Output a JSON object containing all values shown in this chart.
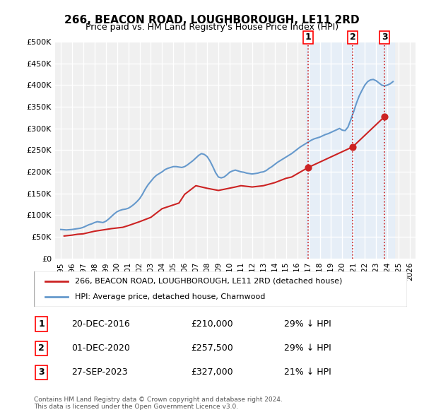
{
  "title": "266, BEACON ROAD, LOUGHBOROUGH, LE11 2RD",
  "subtitle": "Price paid vs. HM Land Registry's House Price Index (HPI)",
  "ylabel": "",
  "ylim": [
    0,
    500000
  ],
  "yticks": [
    0,
    50000,
    100000,
    150000,
    200000,
    250000,
    300000,
    350000,
    400000,
    450000,
    500000
  ],
  "ytick_labels": [
    "£0",
    "£50K",
    "£100K",
    "£150K",
    "£200K",
    "£250K",
    "£300K",
    "£350K",
    "£400K",
    "£450K",
    "£500K"
  ],
  "hpi_color": "#6699cc",
  "price_color": "#cc2222",
  "vline_color": "#cc2222",
  "vline_style": "dotted",
  "background_color": "#f0f0f0",
  "grid_color": "#ffffff",
  "legend_label_price": "266, BEACON ROAD, LOUGHBOROUGH, LE11 2RD (detached house)",
  "legend_label_hpi": "HPI: Average price, detached house, Charnwood",
  "transactions": [
    {
      "num": 1,
      "date": "20-DEC-2016",
      "price": 210000,
      "pct": "29%",
      "dir": "↓",
      "year": 2016.97
    },
    {
      "num": 2,
      "date": "01-DEC-2020",
      "price": 257500,
      "pct": "29%",
      "dir": "↓",
      "year": 2020.92
    },
    {
      "num": 3,
      "date": "27-SEP-2023",
      "price": 327000,
      "pct": "21%",
      "dir": "↓",
      "year": 2023.74
    }
  ],
  "footer": "Contains HM Land Registry data © Crown copyright and database right 2024.\nThis data is licensed under the Open Government Licence v3.0.",
  "hpi_data": {
    "years": [
      1995.0,
      1995.25,
      1995.5,
      1995.75,
      1996.0,
      1996.25,
      1996.5,
      1996.75,
      1997.0,
      1997.25,
      1997.5,
      1997.75,
      1998.0,
      1998.25,
      1998.5,
      1998.75,
      1999.0,
      1999.25,
      1999.5,
      1999.75,
      2000.0,
      2000.25,
      2000.5,
      2000.75,
      2001.0,
      2001.25,
      2001.5,
      2001.75,
      2002.0,
      2002.25,
      2002.5,
      2002.75,
      2003.0,
      2003.25,
      2003.5,
      2003.75,
      2004.0,
      2004.25,
      2004.5,
      2004.75,
      2005.0,
      2005.25,
      2005.5,
      2005.75,
      2006.0,
      2006.25,
      2006.5,
      2006.75,
      2007.0,
      2007.25,
      2007.5,
      2007.75,
      2008.0,
      2008.25,
      2008.5,
      2008.75,
      2009.0,
      2009.25,
      2009.5,
      2009.75,
      2010.0,
      2010.25,
      2010.5,
      2010.75,
      2011.0,
      2011.25,
      2011.5,
      2011.75,
      2012.0,
      2012.25,
      2012.5,
      2012.75,
      2013.0,
      2013.25,
      2013.5,
      2013.75,
      2014.0,
      2014.25,
      2014.5,
      2014.75,
      2015.0,
      2015.25,
      2015.5,
      2015.75,
      2016.0,
      2016.25,
      2016.5,
      2016.75,
      2017.0,
      2017.25,
      2017.5,
      2017.75,
      2018.0,
      2018.25,
      2018.5,
      2018.75,
      2019.0,
      2019.25,
      2019.5,
      2019.75,
      2020.0,
      2020.25,
      2020.5,
      2020.75,
      2021.0,
      2021.25,
      2021.5,
      2021.75,
      2022.0,
      2022.25,
      2022.5,
      2022.75,
      2023.0,
      2023.25,
      2023.5,
      2023.75,
      2024.0,
      2024.25,
      2024.5
    ],
    "values": [
      67000,
      66500,
      66000,
      66500,
      67000,
      68000,
      69000,
      70000,
      72000,
      75000,
      78000,
      80000,
      83000,
      85000,
      84000,
      83000,
      86000,
      91000,
      97000,
      103000,
      108000,
      111000,
      113000,
      114000,
      116000,
      120000,
      125000,
      131000,
      138000,
      148000,
      160000,
      170000,
      178000,
      186000,
      192000,
      196000,
      200000,
      205000,
      208000,
      210000,
      212000,
      212000,
      211000,
      210000,
      212000,
      216000,
      221000,
      226000,
      232000,
      238000,
      242000,
      240000,
      235000,
      225000,
      212000,
      198000,
      188000,
      186000,
      188000,
      193000,
      199000,
      202000,
      204000,
      202000,
      200000,
      199000,
      197000,
      196000,
      195000,
      196000,
      197000,
      199000,
      200000,
      203000,
      208000,
      212000,
      217000,
      222000,
      226000,
      230000,
      234000,
      238000,
      242000,
      247000,
      252000,
      257000,
      261000,
      265000,
      269000,
      273000,
      276000,
      278000,
      280000,
      283000,
      286000,
      288000,
      291000,
      294000,
      297000,
      300000,
      296000,
      295000,
      303000,
      320000,
      338000,
      358000,
      375000,
      388000,
      400000,
      408000,
      412000,
      413000,
      410000,
      405000,
      400000,
      398000,
      400000,
      403000,
      408000
    ],
    "shaded_regions": [
      {
        "start": 2016.75,
        "end": 2021.0
      },
      {
        "start": 2020.75,
        "end": 2024.5
      },
      {
        "start": 2023.5,
        "end": 2024.75
      }
    ]
  },
  "price_data": {
    "years": [
      1995.3,
      1996.0,
      1996.5,
      1997.0,
      1997.5,
      1998.0,
      1998.5,
      1999.0,
      1999.5,
      2000.5,
      2001.0,
      2002.0,
      2003.0,
      2004.0,
      2005.5,
      2006.0,
      2007.0,
      2007.5,
      2008.0,
      2009.0,
      2010.5,
      2011.0,
      2012.0,
      2013.0,
      2014.0,
      2015.0,
      2015.5,
      2016.97,
      2020.92,
      2023.74
    ],
    "values": [
      52000,
      54000,
      56000,
      57000,
      60000,
      63000,
      65000,
      67000,
      69000,
      72000,
      76000,
      85000,
      95000,
      115000,
      128000,
      148000,
      168000,
      165000,
      162000,
      157000,
      165000,
      168000,
      165000,
      168000,
      175000,
      185000,
      188000,
      210000,
      257500,
      327000
    ]
  },
  "xtick_years": [
    1995,
    1996,
    1997,
    1998,
    1999,
    2000,
    2001,
    2002,
    2003,
    2004,
    2005,
    2006,
    2007,
    2008,
    2009,
    2010,
    2011,
    2012,
    2013,
    2014,
    2015,
    2016,
    2017,
    2018,
    2019,
    2020,
    2021,
    2022,
    2023,
    2024,
    2025,
    2026
  ]
}
